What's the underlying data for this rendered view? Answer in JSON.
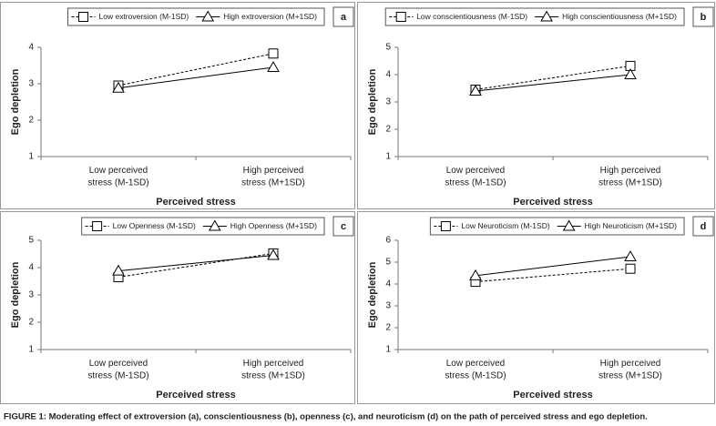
{
  "chart_data": [
    {
      "type": "line",
      "panel_label": "a",
      "ylabel": "Ego depletion",
      "xlabel": "Perceived stress",
      "categories": [
        "Low perceived\nstress (M-1SD)",
        "High perceived\nstress (M+1SD)"
      ],
      "ylim": [
        1,
        4
      ],
      "yticks": [
        1,
        2,
        3,
        4
      ],
      "series": [
        {
          "name": "Low extroversion (M-1SD)",
          "color": "#000000",
          "line_style": "dashed",
          "marker": "square",
          "values": [
            2.95,
            3.83
          ]
        },
        {
          "name": "High extroversion (M+1SD)",
          "color": "#000000",
          "line_style": "solid",
          "marker": "triangle",
          "values": [
            2.88,
            3.45
          ]
        }
      ]
    },
    {
      "type": "line",
      "panel_label": "b",
      "ylabel": "Ego depletion",
      "xlabel": "Perceived stress",
      "categories": [
        "Low perceived\nstress (M-1SD)",
        "High perceived\nstress (M+1SD)"
      ],
      "ylim": [
        1,
        5
      ],
      "yticks": [
        1,
        2,
        3,
        4,
        5
      ],
      "series": [
        {
          "name": "Low conscientiousness (M-1SD)",
          "color": "#000000",
          "line_style": "dashed",
          "marker": "square",
          "values": [
            3.45,
            4.32
          ]
        },
        {
          "name": "High conscientiousness (M+1SD)",
          "color": "#000000",
          "line_style": "solid",
          "marker": "triangle",
          "values": [
            3.4,
            4.0
          ]
        }
      ]
    },
    {
      "type": "line",
      "panel_label": "c",
      "ylabel": "Ego depletion",
      "xlabel": "Perceived stress",
      "categories": [
        "Low perceived\nstress (M-1SD)",
        "High perceived\nstress (M+1SD)"
      ],
      "ylim": [
        1,
        5
      ],
      "yticks": [
        1,
        2,
        3,
        4,
        5
      ],
      "series": [
        {
          "name": "Low Openness (M-1SD)",
          "color": "#000000",
          "line_style": "dashed",
          "marker": "square",
          "values": [
            3.65,
            4.52
          ]
        },
        {
          "name": "High Openness (M+1SD)",
          "color": "#000000",
          "line_style": "solid",
          "marker": "triangle",
          "values": [
            3.88,
            4.45
          ]
        }
      ]
    },
    {
      "type": "line",
      "panel_label": "d",
      "ylabel": "Ego depletion",
      "xlabel": "Perceived stress",
      "categories": [
        "Low perceived\nstress (M-1SD)",
        "High perceived\nstress (M+1SD)"
      ],
      "ylim": [
        1,
        6
      ],
      "yticks": [
        1,
        2,
        3,
        4,
        5,
        6
      ],
      "series": [
        {
          "name": "Low Neuroticism (M-1SD)",
          "color": "#000000",
          "line_style": "dashed",
          "marker": "square",
          "values": [
            4.1,
            4.7
          ]
        },
        {
          "name": "High Neuroticism (M+1SD)",
          "color": "#000000",
          "line_style": "solid",
          "marker": "triangle",
          "values": [
            4.38,
            5.25
          ]
        }
      ]
    }
  ],
  "caption": "FIGURE 1: Moderating effect of extroversion (a), conscientiousness (b), openness (c), and neuroticism (d) on the path of perceived stress and ego depletion."
}
